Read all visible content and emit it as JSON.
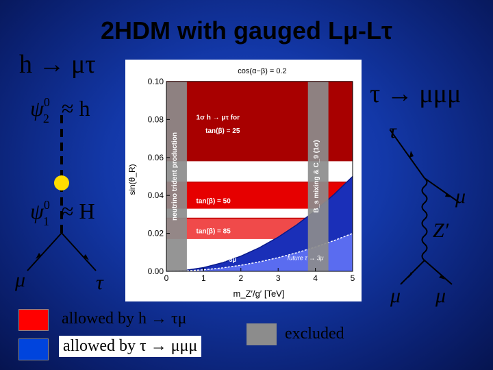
{
  "title": "2HDM with gauged Lμ-Lτ",
  "left_process": "h → μτ",
  "right_process": "τ → μμμ",
  "diagram_left": {
    "psi2": "ψ",
    "psi2_sup": "0",
    "psi2_sub": "2",
    "psi2_rel": "≈ h",
    "psi1": "ψ",
    "psi1_sup": "0",
    "psi1_sub": "1",
    "psi1_rel": "≈ H",
    "mu": "μ",
    "tau": "τ"
  },
  "diagram_right": {
    "tau": "τ",
    "mu_top": "μ",
    "zprime": "Z′",
    "mu_bl": "μ",
    "mu_br": "μ"
  },
  "chart_data": {
    "type": "area",
    "title": "cos(α−β) = 0.2",
    "xlabel": "m_Z′/g′ [TeV]",
    "ylabel": "sin(θ_R)",
    "xlim": [
      0,
      5
    ],
    "ylim": [
      0,
      0.1
    ],
    "xticks": [
      "0",
      "1",
      "2",
      "3",
      "4",
      "5"
    ],
    "yticks": [
      "0.00",
      "0.02",
      "0.04",
      "0.06",
      "0.08",
      "0.10"
    ],
    "excluded_regions": [
      {
        "name": "neutrino trident production",
        "x": [
          0,
          0.55
        ]
      },
      {
        "name": "B_s mixing & C_9 (1σ)",
        "x": [
          3.8,
          4.35
        ]
      }
    ],
    "bands": [
      {
        "name": "1σ h → μτ for tan(β) = 25",
        "y": [
          0.058,
          0.1
        ],
        "color": "#a80000"
      },
      {
        "name": "tan(β) = 50",
        "y": [
          0.033,
          0.047
        ],
        "color": "#e60000"
      },
      {
        "name": "tan(β) = 85",
        "y": [
          0.017,
          0.028
        ],
        "color": "#f04a4a"
      }
    ],
    "lines": [
      {
        "name": "τ → 3μ",
        "x": [
          0,
          0.5,
          1,
          1.5,
          2,
          2.5,
          3,
          3.5,
          4,
          4.5,
          5
        ],
        "y": [
          0,
          0.0005,
          0.002,
          0.0045,
          0.008,
          0.0125,
          0.018,
          0.0245,
          0.032,
          0.0405,
          0.05
        ]
      },
      {
        "name": "future τ → 3μ",
        "x": [
          0,
          0.5,
          1,
          1.5,
          2,
          2.5,
          3,
          3.5,
          4,
          4.5,
          5
        ],
        "y": [
          0,
          0.0002,
          0.0008,
          0.0018,
          0.0032,
          0.005,
          0.0072,
          0.0098,
          0.0128,
          0.0162,
          0.02
        ]
      }
    ],
    "labels": {
      "band1_line1": "1σ h → μτ for",
      "band1_line2": "tan(β) = 25",
      "band2": "tan(β) = 50",
      "band3": "tan(β) = 85",
      "trident": "neutrino trident production",
      "bs": "B_s mixing & C_9 (1σ)",
      "tau3mu": "τ → 3μ",
      "future": "future τ → 3μ"
    }
  },
  "legend": [
    {
      "text": "allowed by h → τμ",
      "color": "#ff0000"
    },
    {
      "text": "allowed by τ → μμμ",
      "color": "#0044dd"
    },
    {
      "text": "excluded",
      "color": "#8c8c8c"
    }
  ]
}
